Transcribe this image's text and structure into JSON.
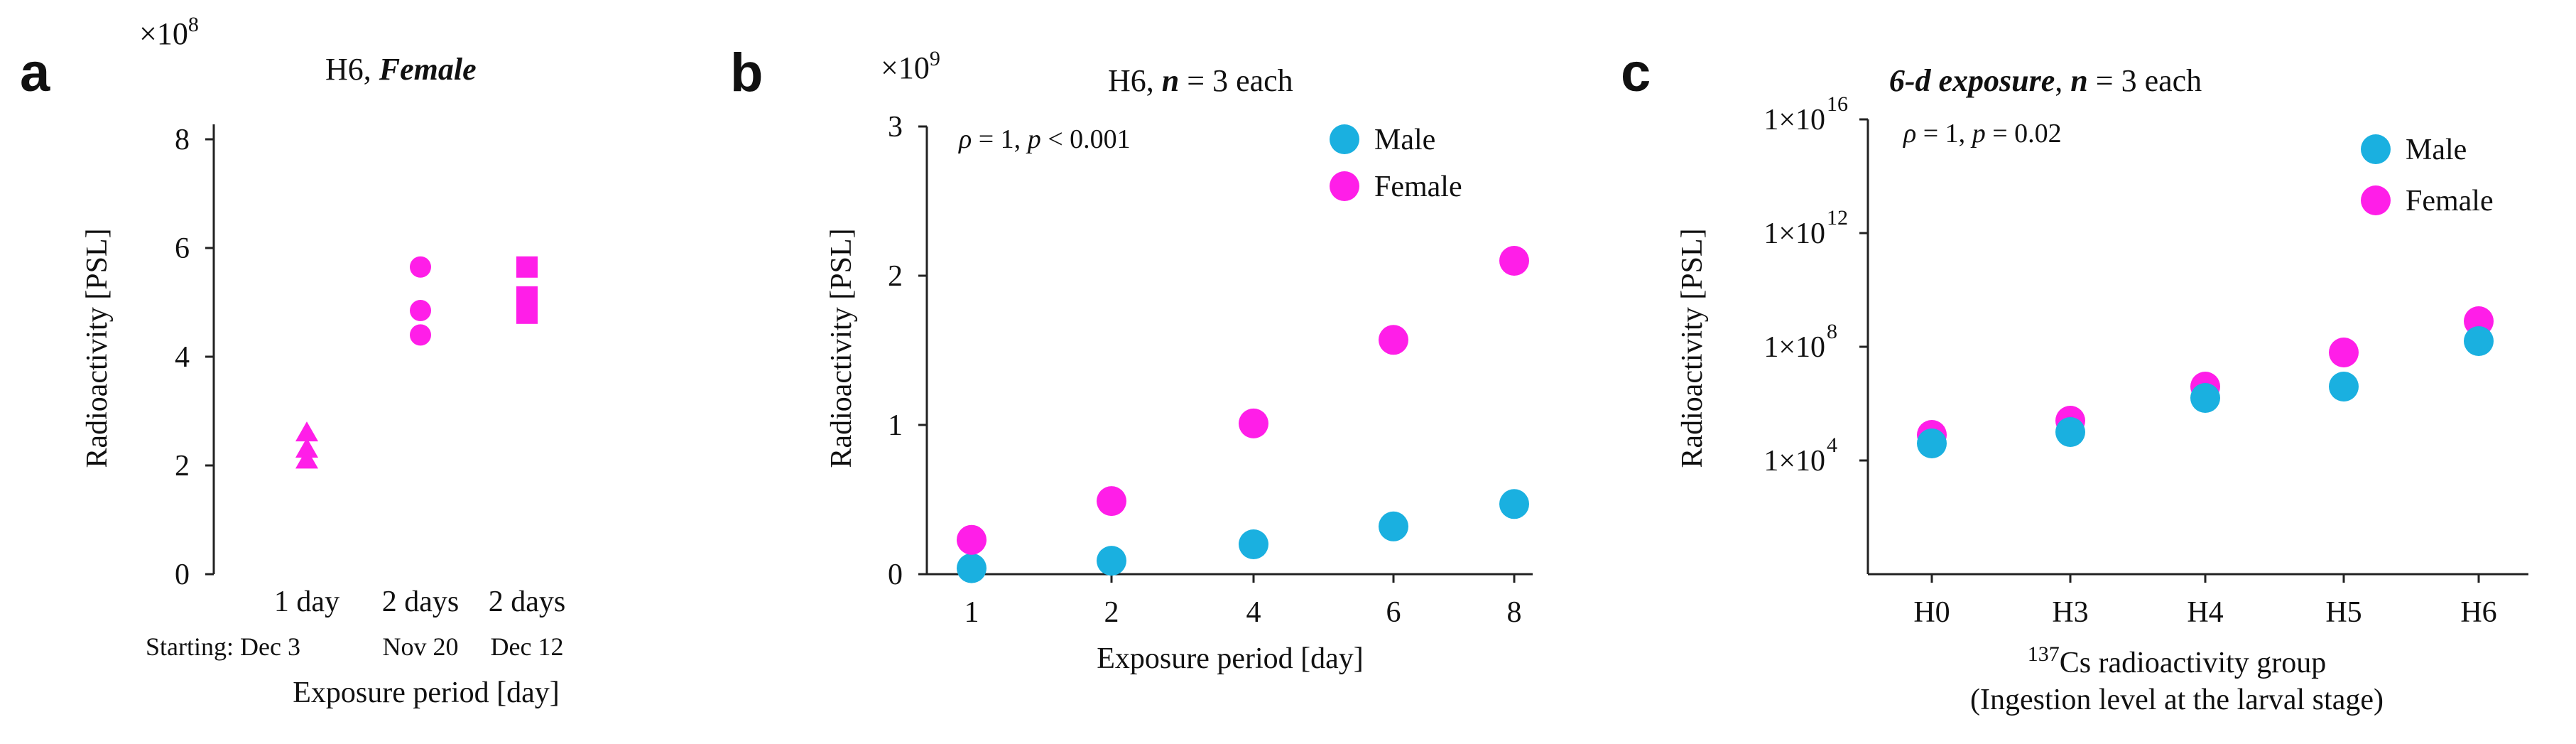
{
  "colors": {
    "male": "#1ab0e0",
    "female": "#ff1ee8",
    "axis": "#222222",
    "text": "#111111"
  },
  "chart_data": [
    {
      "panel": "a",
      "type": "scatter",
      "title_prefix": "H6, ",
      "title_italic": "Female",
      "multiplier": "×10",
      "multiplier_exp": "8",
      "ylabel": "Radioactivity [PSL]",
      "xlabel": "Exposure period [day]",
      "ylim": [
        0,
        8
      ],
      "yticks": [
        "0",
        "2",
        "4",
        "6",
        "8"
      ],
      "categories": [
        "1 day",
        "2 days",
        "2 days"
      ],
      "sublabels": [
        "Starting: Dec 3",
        "Nov 20",
        "Dec 12"
      ],
      "series": [
        {
          "marker": "triangle",
          "x_index": 0,
          "values": [
            2.1,
            2.3,
            2.6
          ]
        },
        {
          "marker": "circle",
          "x_index": 1,
          "values": [
            4.4,
            4.85,
            5.65
          ]
        },
        {
          "marker": "square",
          "x_index": 2,
          "values": [
            4.8,
            5.1,
            5.65
          ]
        }
      ]
    },
    {
      "panel": "b",
      "type": "scatter",
      "title_prefix": "H6, ",
      "title_n": "n",
      "title_suffix": " = 3 each",
      "multiplier": "×10",
      "multiplier_exp": "9",
      "annotation": {
        "rho": "ρ",
        "rest1": " = 1, ",
        "p": "p",
        "rest2": " < 0.001"
      },
      "ylabel": "Radioactivity [PSL]",
      "xlabel": "Exposure period [day]",
      "ylim": [
        0,
        3
      ],
      "yticks": [
        "0",
        "1",
        "2",
        "3"
      ],
      "categories": [
        "1",
        "2",
        "4",
        "6",
        "8"
      ],
      "series": [
        {
          "name": "Male",
          "values": [
            0.04,
            0.09,
            0.2,
            0.32,
            0.47
          ]
        },
        {
          "name": "Female",
          "values": [
            0.23,
            0.49,
            1.01,
            1.57,
            2.1
          ]
        }
      ]
    },
    {
      "panel": "c",
      "type": "scatter",
      "log_scale": true,
      "title_italic": "6-d exposure",
      "title_sep": ", ",
      "title_n": "n",
      "title_suffix": " = 3 each",
      "annotation": {
        "rho": "ρ",
        "rest1": " = 1, ",
        "p": "p",
        "rest2": " = 0.02"
      },
      "ylabel": "Radioactivity [PSL]",
      "xlabel_sup": "137",
      "xlabel": "Cs radioactivity group",
      "xlabel2": "(Ingestion level at the larval stage)",
      "ylim_log10": [
        0,
        16
      ],
      "yticks": [
        {
          "base": "1×10",
          "exp": "4"
        },
        {
          "base": "1×10",
          "exp": "8"
        },
        {
          "base": "1×10",
          "exp": "12"
        },
        {
          "base": "1×10",
          "exp": "16"
        }
      ],
      "categories": [
        "H0",
        "H3",
        "H4",
        "H5",
        "H6"
      ],
      "series": [
        {
          "name": "Male",
          "log10_values": [
            4.6,
            5.0,
            6.2,
            6.6,
            8.2
          ]
        },
        {
          "name": "Female",
          "log10_values": [
            4.9,
            5.4,
            6.6,
            7.8,
            8.9
          ]
        }
      ]
    }
  ]
}
